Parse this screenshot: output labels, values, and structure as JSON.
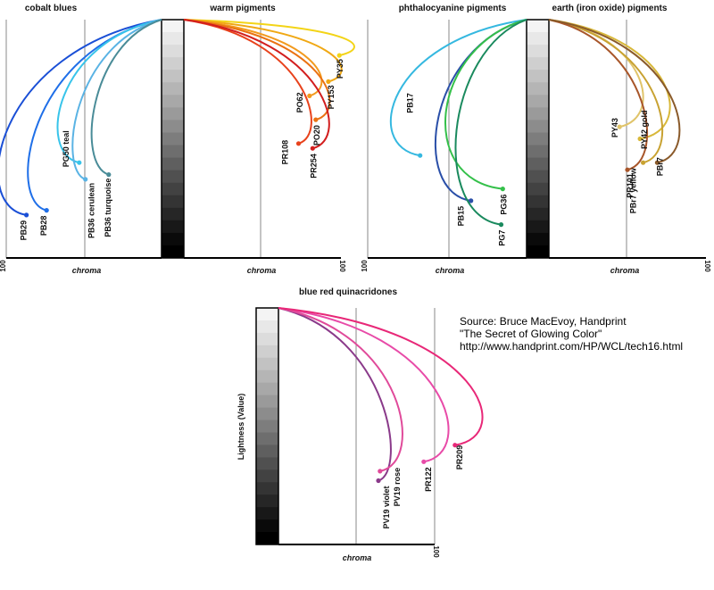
{
  "chart_data": [
    {
      "type": "line",
      "title": "cobalt blues",
      "xlabel": "chroma",
      "ylabel": "",
      "x_direction": "leftward",
      "xlim": [
        0,
        100
      ],
      "tick_labels": [
        "100"
      ],
      "series": [
        {
          "name": "PB29",
          "color": "#1a4fd6",
          "endpoint": {
            "chroma": 87,
            "lightness": 18
          }
        },
        {
          "name": "PB28",
          "color": "#1f6fe8",
          "endpoint": {
            "chroma": 74,
            "lightness": 20
          }
        },
        {
          "name": "PG50 teal",
          "color": "#38c4ea",
          "endpoint": {
            "chroma": 53,
            "lightness": 40
          }
        },
        {
          "name": "PB36 cerulean",
          "color": "#5ab3e4",
          "endpoint": {
            "chroma": 49,
            "lightness": 33
          }
        },
        {
          "name": "PB36 turquoise",
          "color": "#4a8c98",
          "endpoint": {
            "chroma": 34,
            "lightness": 35
          }
        }
      ]
    },
    {
      "type": "line",
      "title": "warm pigments",
      "xlabel": "chroma",
      "ylabel": "",
      "x_direction": "rightward",
      "xlim": [
        0,
        100
      ],
      "tick_labels": [
        "100"
      ],
      "series": [
        {
          "name": "PY35",
          "color": "#f3d417",
          "endpoint": {
            "chroma": 99,
            "lightness": 85
          }
        },
        {
          "name": "PY153",
          "color": "#f0a814",
          "endpoint": {
            "chroma": 92,
            "lightness": 74
          }
        },
        {
          "name": "PO62",
          "color": "#f29a1e",
          "endpoint": {
            "chroma": 80,
            "lightness": 68
          }
        },
        {
          "name": "PO20",
          "color": "#ea7212",
          "endpoint": {
            "chroma": 84,
            "lightness": 58
          }
        },
        {
          "name": "PR108",
          "color": "#e8421c",
          "endpoint": {
            "chroma": 73,
            "lightness": 48
          }
        },
        {
          "name": "PR254",
          "color": "#d21e1e",
          "endpoint": {
            "chroma": 82,
            "lightness": 46
          }
        }
      ]
    },
    {
      "type": "line",
      "title": "phthalocyanine pigments",
      "xlabel": "chroma",
      "ylabel": "",
      "x_direction": "leftward",
      "xlim": [
        0,
        100
      ],
      "tick_labels": [
        "100"
      ],
      "series": [
        {
          "name": "PB17",
          "color": "#35b8e0",
          "endpoint": {
            "chroma": 67,
            "lightness": 43
          }
        },
        {
          "name": "PB15",
          "color": "#2a4fa8",
          "endpoint": {
            "chroma": 35,
            "lightness": 24
          }
        },
        {
          "name": "PG36",
          "color": "#34c04a",
          "endpoint": {
            "chroma": 15,
            "lightness": 29
          }
        },
        {
          "name": "PG7",
          "color": "#1a8a5e",
          "endpoint": {
            "chroma": 16,
            "lightness": 14
          }
        }
      ]
    },
    {
      "type": "line",
      "title": "earth (iron oxide) pigments",
      "xlabel": "chroma",
      "ylabel": "",
      "x_direction": "rightward",
      "xlim": [
        0,
        100
      ],
      "tick_labels": [
        "100"
      ],
      "series": [
        {
          "name": "PY43",
          "color": "#e0c46a",
          "endpoint": {
            "chroma": 45,
            "lightness": 55
          }
        },
        {
          "name": "PY42 gold",
          "color": "#d8b83a",
          "endpoint": {
            "chroma": 58,
            "lightness": 50
          }
        },
        {
          "name": "PBr7 yellow",
          "color": "#c8a232",
          "endpoint": {
            "chroma": 60,
            "lightness": 40
          }
        },
        {
          "name": "PR101",
          "color": "#a8562a",
          "endpoint": {
            "chroma": 50,
            "lightness": 37
          }
        },
        {
          "name": "PBr7",
          "color": "#8a5a2a",
          "endpoint": {
            "chroma": 69,
            "lightness": 40
          }
        }
      ]
    },
    {
      "type": "line",
      "title": "blue red quinacridones",
      "xlabel": "chroma",
      "ylabel": "Lightness (Value)",
      "x_direction": "rightward",
      "xlim": [
        0,
        100
      ],
      "tick_labels": [
        "100"
      ],
      "series": [
        {
          "name": "PV19 violet",
          "color": "#8a3a8a",
          "endpoint": {
            "chroma": 64,
            "lightness": 27
          }
        },
        {
          "name": "PR122",
          "color": "#e84ba8",
          "endpoint": {
            "chroma": 93,
            "lightness": 35
          }
        },
        {
          "name": "PV19 rose",
          "color": "#e04a9a",
          "endpoint": {
            "chroma": 65,
            "lightness": 31
          }
        },
        {
          "name": "PR209",
          "color": "#e82878",
          "endpoint": {
            "chroma": 113,
            "lightness": 42
          }
        }
      ]
    }
  ],
  "source": {
    "line1": "Source:  Bruce MacEvoy, Handprint",
    "line2": "\"The Secret of Glowing Color\"",
    "line3": "http://www.handprint.com/HP/WCL/tech16.html"
  }
}
